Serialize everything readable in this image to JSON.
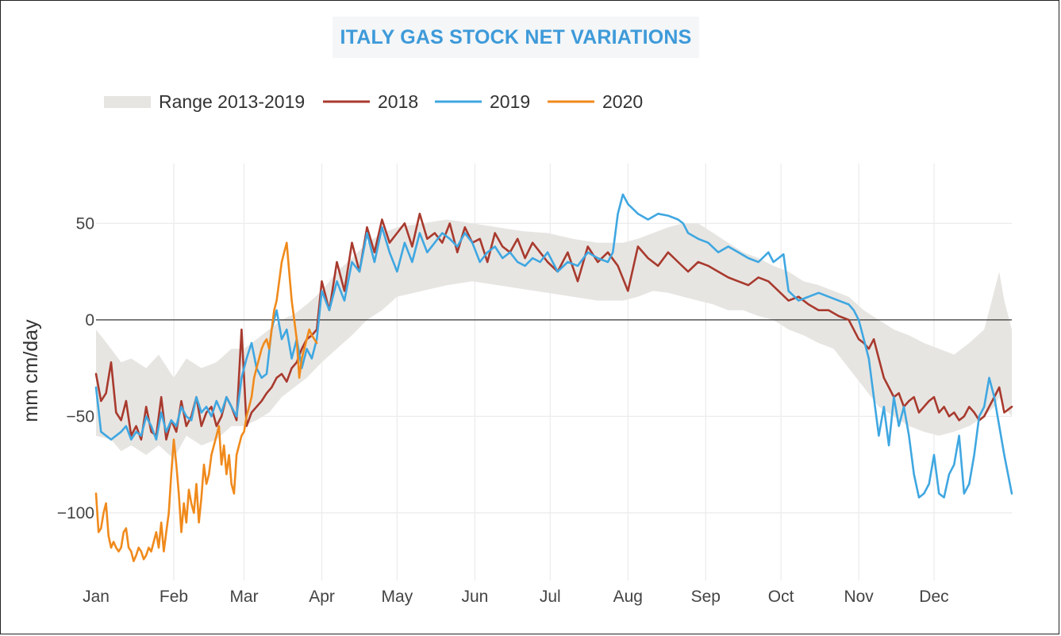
{
  "chart_data": {
    "type": "line",
    "title": "ITALY GAS STOCK NET VARIATIONS",
    "ylabel": "mm cm/day",
    "xlabel": "",
    "ylim": [
      -135,
      81
    ],
    "xlim": [
      0,
      365
    ],
    "x_ticks": [
      {
        "label": "Jan",
        "day": 0
      },
      {
        "label": "Feb",
        "day": 31
      },
      {
        "label": "Mar",
        "day": 59
      },
      {
        "label": "Apr",
        "day": 90
      },
      {
        "label": "May",
        "day": 120
      },
      {
        "label": "Jun",
        "day": 151
      },
      {
        "label": "Jul",
        "day": 181
      },
      {
        "label": "Aug",
        "day": 212
      },
      {
        "label": "Sep",
        "day": 243
      },
      {
        "label": "Oct",
        "day": 273
      },
      {
        "label": "Nov",
        "day": 304
      },
      {
        "label": "Dec",
        "day": 334
      }
    ],
    "y_ticks": [
      {
        "label": "50",
        "value": 50
      },
      {
        "label": "0",
        "value": 0
      },
      {
        "label": "−50",
        "value": -50
      },
      {
        "label": "−100",
        "value": -100
      }
    ],
    "zero_line": true,
    "grid": true,
    "legend_position": "top-left",
    "range": {
      "name": "Range 2013-2019",
      "color": "#e7e5e2",
      "x": [
        0,
        6,
        10,
        14,
        20,
        25,
        31,
        36,
        42,
        48,
        54,
        59,
        64,
        69,
        74,
        79,
        84,
        90,
        96,
        102,
        108,
        114,
        120,
        130,
        140,
        150,
        160,
        170,
        180,
        190,
        200,
        210,
        216,
        222,
        228,
        234,
        240,
        246,
        252,
        258,
        264,
        270,
        276,
        282,
        288,
        294,
        300,
        306,
        312,
        318,
        324,
        330,
        336,
        342,
        348,
        354,
        358,
        360,
        362,
        365
      ],
      "upper": [
        -5,
        -15,
        -22,
        -20,
        -25,
        -18,
        -30,
        -20,
        -25,
        -22,
        -15,
        -15,
        -10,
        -5,
        0,
        3,
        8,
        15,
        25,
        32,
        40,
        45,
        48,
        50,
        52,
        50,
        48,
        46,
        45,
        42,
        40,
        40,
        42,
        45,
        48,
        50,
        50,
        45,
        40,
        35,
        32,
        28,
        25,
        20,
        18,
        15,
        12,
        5,
        0,
        -5,
        -8,
        -12,
        -15,
        -18,
        -12,
        -5,
        15,
        25,
        10,
        -5
      ],
      "lower": [
        -60,
        -62,
        -68,
        -65,
        -70,
        -65,
        -72,
        -60,
        -65,
        -62,
        -55,
        -55,
        -52,
        -48,
        -40,
        -35,
        -30,
        -22,
        -15,
        -8,
        0,
        5,
        12,
        15,
        18,
        20,
        18,
        16,
        14,
        12,
        10,
        10,
        12,
        15,
        14,
        12,
        10,
        8,
        5,
        5,
        2,
        0,
        -5,
        -8,
        -12,
        -15,
        -25,
        -35,
        -45,
        -50,
        -55,
        -58,
        -60,
        -58,
        -55,
        -50,
        -45,
        -40,
        -45,
        -50
      ]
    },
    "series": [
      {
        "name": "2018",
        "color": "#a83a2e",
        "x": [
          0,
          2,
          4,
          6,
          8,
          10,
          12,
          14,
          16,
          18,
          20,
          22,
          24,
          26,
          28,
          30,
          32,
          34,
          36,
          38,
          40,
          42,
          44,
          46,
          48,
          50,
          52,
          54,
          56,
          58,
          60,
          62,
          64,
          66,
          68,
          70,
          72,
          74,
          76,
          78,
          80,
          82,
          84,
          86,
          88,
          90,
          93,
          96,
          99,
          102,
          105,
          108,
          111,
          114,
          117,
          120,
          123,
          126,
          129,
          132,
          135,
          138,
          141,
          144,
          147,
          150,
          153,
          156,
          159,
          162,
          165,
          168,
          171,
          174,
          177,
          180,
          184,
          188,
          192,
          196,
          200,
          204,
          208,
          212,
          216,
          220,
          224,
          228,
          232,
          236,
          240,
          244,
          248,
          252,
          256,
          260,
          264,
          268,
          272,
          276,
          280,
          284,
          288,
          292,
          296,
          300,
          304,
          306,
          308,
          310,
          312,
          314,
          316,
          318,
          320,
          322,
          324,
          326,
          328,
          330,
          332,
          334,
          336,
          338,
          340,
          342,
          344,
          346,
          348,
          350,
          352,
          354,
          356,
          358,
          360,
          362,
          365
        ],
        "values": [
          -28,
          -42,
          -38,
          -22,
          -48,
          -52,
          -42,
          -60,
          -55,
          -62,
          -45,
          -58,
          -60,
          -40,
          -62,
          -52,
          -58,
          -42,
          -55,
          -50,
          -40,
          -55,
          -48,
          -45,
          -55,
          -50,
          -40,
          -45,
          -52,
          -5,
          -55,
          -48,
          -45,
          -42,
          -38,
          -35,
          -30,
          -28,
          -32,
          -25,
          -22,
          -15,
          -10,
          -8,
          -5,
          20,
          5,
          30,
          15,
          40,
          25,
          48,
          35,
          52,
          40,
          45,
          50,
          38,
          55,
          42,
          45,
          40,
          50,
          35,
          48,
          40,
          42,
          30,
          45,
          38,
          35,
          42,
          32,
          40,
          35,
          30,
          25,
          35,
          20,
          38,
          30,
          35,
          28,
          15,
          38,
          32,
          28,
          35,
          30,
          25,
          30,
          28,
          25,
          22,
          20,
          18,
          22,
          20,
          15,
          10,
          12,
          8,
          5,
          5,
          2,
          0,
          -10,
          -12,
          -15,
          -10,
          -20,
          -30,
          -35,
          -40,
          -38,
          -45,
          -42,
          -40,
          -48,
          -45,
          -42,
          -40,
          -48,
          -45,
          -50,
          -48,
          -52,
          -50,
          -45,
          -48,
          -52,
          -50,
          -45,
          -40,
          -35,
          -48,
          -45
        ]
      },
      {
        "name": "2019",
        "color": "#3fa7e1",
        "x": [
          0,
          2,
          4,
          6,
          8,
          10,
          12,
          14,
          16,
          18,
          20,
          22,
          24,
          26,
          28,
          30,
          32,
          34,
          36,
          38,
          40,
          42,
          44,
          46,
          48,
          50,
          52,
          54,
          56,
          58,
          60,
          62,
          64,
          66,
          68,
          70,
          72,
          74,
          76,
          78,
          80,
          82,
          84,
          86,
          88,
          90,
          93,
          96,
          99,
          102,
          105,
          108,
          111,
          114,
          117,
          120,
          123,
          126,
          129,
          132,
          135,
          138,
          141,
          144,
          147,
          150,
          153,
          156,
          159,
          162,
          165,
          168,
          171,
          174,
          177,
          180,
          184,
          188,
          192,
          196,
          200,
          204,
          206,
          208,
          210,
          212,
          216,
          220,
          224,
          228,
          232,
          234,
          236,
          240,
          244,
          248,
          252,
          256,
          260,
          264,
          268,
          270,
          272,
          274,
          276,
          280,
          284,
          288,
          292,
          296,
          300,
          302,
          304,
          306,
          308,
          310,
          312,
          314,
          316,
          318,
          320,
          322,
          324,
          326,
          328,
          330,
          332,
          334,
          336,
          338,
          340,
          342,
          344,
          346,
          348,
          350,
          352,
          354,
          356,
          358,
          360,
          362,
          365
        ],
        "values": [
          -35,
          -58,
          -60,
          -62,
          -60,
          -58,
          -55,
          -62,
          -58,
          -60,
          -50,
          -55,
          -62,
          -48,
          -58,
          -52,
          -55,
          -45,
          -50,
          -52,
          -40,
          -48,
          -45,
          -50,
          -42,
          -48,
          -40,
          -45,
          -50,
          -30,
          -20,
          -12,
          -25,
          -30,
          -28,
          -5,
          5,
          -10,
          -5,
          -20,
          -10,
          -25,
          -15,
          -20,
          -10,
          15,
          5,
          20,
          10,
          30,
          25,
          45,
          30,
          48,
          35,
          25,
          40,
          30,
          45,
          35,
          40,
          45,
          42,
          38,
          45,
          40,
          30,
          35,
          38,
          32,
          35,
          30,
          28,
          32,
          30,
          35,
          25,
          30,
          28,
          35,
          32,
          30,
          35,
          55,
          65,
          60,
          55,
          52,
          55,
          54,
          52,
          50,
          45,
          42,
          40,
          35,
          38,
          35,
          32,
          30,
          35,
          30,
          32,
          34,
          15,
          10,
          12,
          14,
          12,
          10,
          8,
          5,
          0,
          -10,
          -20,
          -40,
          -60,
          -45,
          -65,
          -40,
          -55,
          -45,
          -60,
          -80,
          -92,
          -90,
          -85,
          -70,
          -90,
          -92,
          -80,
          -75,
          -60,
          -90,
          -85,
          -70,
          -50,
          -45,
          -30,
          -40,
          -55,
          -70,
          -90
        ]
      },
      {
        "name": "2020",
        "color": "#f08a1c",
        "x": [
          0,
          1,
          2,
          3,
          4,
          5,
          6,
          7,
          8,
          9,
          10,
          11,
          12,
          13,
          14,
          15,
          16,
          17,
          18,
          19,
          20,
          21,
          22,
          23,
          24,
          25,
          26,
          27,
          28,
          29,
          30,
          31,
          32,
          33,
          34,
          35,
          36,
          37,
          38,
          39,
          40,
          41,
          42,
          43,
          44,
          45,
          46,
          47,
          48,
          49,
          50,
          51,
          52,
          53,
          54,
          55,
          56,
          57,
          58,
          59,
          60,
          61,
          62,
          63,
          64,
          65,
          66,
          67,
          68,
          69,
          70,
          71,
          72,
          73,
          74,
          75,
          76,
          77,
          78,
          79,
          80,
          81,
          82,
          83,
          84,
          85,
          86,
          87,
          88
        ],
        "values": [
          -90,
          -110,
          -108,
          -100,
          -95,
          -112,
          -118,
          -115,
          -118,
          -120,
          -118,
          -110,
          -108,
          -118,
          -120,
          -125,
          -122,
          -118,
          -120,
          -124,
          -122,
          -118,
          -120,
          -115,
          -110,
          -118,
          -105,
          -120,
          -110,
          -100,
          -80,
          -62,
          -75,
          -90,
          -110,
          -95,
          -105,
          -88,
          -95,
          -100,
          -85,
          -105,
          -92,
          -75,
          -85,
          -80,
          -70,
          -65,
          -60,
          -55,
          -75,
          -65,
          -80,
          -70,
          -85,
          -90,
          -70,
          -65,
          -60,
          -58,
          -50,
          -45,
          -40,
          -30,
          -25,
          -20,
          -15,
          -12,
          -10,
          -15,
          -5,
          5,
          10,
          20,
          30,
          35,
          40,
          25,
          10,
          0,
          -10,
          -30,
          -20,
          -15,
          -10,
          -5,
          -8,
          -10,
          -12
        ]
      }
    ],
    "legend": [
      {
        "label": "Range 2013-2019",
        "kind": "area",
        "color": "#e7e5e2"
      },
      {
        "label": "2018",
        "kind": "line",
        "color": "#a83a2e"
      },
      {
        "label": "2019",
        "kind": "line",
        "color": "#3fa7e1"
      },
      {
        "label": "2020",
        "kind": "line",
        "color": "#f08a1c"
      }
    ]
  }
}
